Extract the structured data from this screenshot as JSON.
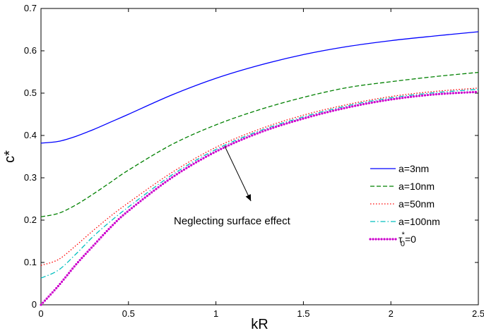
{
  "chart_data": {
    "type": "line",
    "xlabel": "kR",
    "ylabel": "c*",
    "xlim": [
      0,
      2.5
    ],
    "ylim": [
      0,
      0.7
    ],
    "xticks": [
      0,
      0.5,
      1,
      1.5,
      2,
      2.5
    ],
    "xtick_labels": [
      "0",
      "0.5",
      "1",
      "1.5",
      "2",
      "2.5"
    ],
    "yticks": [
      0,
      0.1,
      0.2,
      0.3,
      0.4,
      0.5,
      0.6,
      0.7
    ],
    "ytick_labels": [
      "0",
      "0.1",
      "0.2",
      "0.3",
      "0.4",
      "0.5",
      "0.6",
      "0.7"
    ],
    "grid": false,
    "legend_position": "right",
    "x": [
      0,
      0.1,
      0.2,
      0.3,
      0.4,
      0.5,
      0.75,
      1.0,
      1.25,
      1.5,
      1.75,
      2.0,
      2.25,
      2.5
    ],
    "series": [
      {
        "name": "a=3nm",
        "legend_label": "a=3nm",
        "color": "#0000ff",
        "dash": "solid",
        "marker": false,
        "values": [
          0.382,
          0.386,
          0.398,
          0.414,
          0.432,
          0.45,
          0.496,
          0.535,
          0.566,
          0.591,
          0.61,
          0.624,
          0.635,
          0.645
        ]
      },
      {
        "name": "a=10nm",
        "legend_label": "a=10nm",
        "color": "#008000",
        "dash": "dashed",
        "marker": false,
        "values": [
          0.208,
          0.216,
          0.236,
          0.262,
          0.29,
          0.318,
          0.379,
          0.425,
          0.461,
          0.49,
          0.513,
          0.527,
          0.539,
          0.549
        ]
      },
      {
        "name": "a=50nm",
        "legend_label": "a=50nm",
        "color": "#ff0000",
        "dash": "dotted",
        "marker": false,
        "values": [
          0.093,
          0.107,
          0.14,
          0.176,
          0.21,
          0.241,
          0.313,
          0.372,
          0.415,
          0.448,
          0.473,
          0.492,
          0.504,
          0.512
        ]
      },
      {
        "name": "a=100nm",
        "legend_label": "a=100nm",
        "color": "#00bfbf",
        "dash": "dashdot",
        "marker": false,
        "values": [
          0.063,
          0.082,
          0.12,
          0.162,
          0.198,
          0.231,
          0.307,
          0.367,
          0.411,
          0.444,
          0.47,
          0.489,
          0.501,
          0.509
        ]
      },
      {
        "name": "τ0*=0",
        "legend_label": {
          "base": "τ",
          "sub": "0",
          "sup": "*",
          "rest": "=0"
        },
        "color": "#cc00cc",
        "dash": "dotted",
        "marker": true,
        "values": [
          0.0,
          0.045,
          0.095,
          0.14,
          0.184,
          0.222,
          0.301,
          0.362,
          0.407,
          0.44,
          0.466,
          0.485,
          0.497,
          0.503
        ]
      }
    ],
    "annotation": {
      "text": "Neglecting surface effect",
      "arrow_from": [
        1.2,
        0.245
      ],
      "arrow_to": [
        1.05,
        0.375
      ]
    }
  }
}
